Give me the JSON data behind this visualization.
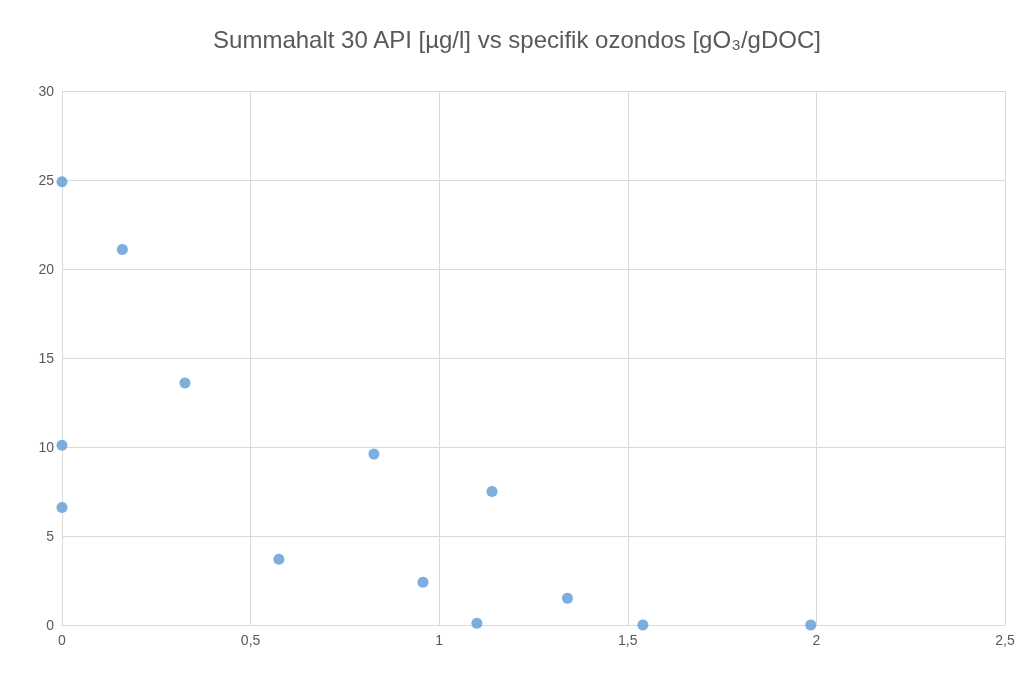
{
  "chart_data": {
    "type": "scatter",
    "title": "Summahalt 30 API [µg/l] vs specifik ozondos [gO₃/gDOC]",
    "x": [
      0,
      0.16,
      0.326,
      0,
      0,
      0.575,
      0.827,
      0.957,
      1.1,
      1.14,
      1.34,
      1.54,
      1.985
    ],
    "values": [
      24.9,
      21.1,
      13.6,
      10.1,
      6.6,
      3.7,
      9.6,
      2.4,
      0.1,
      7.5,
      1.5,
      0,
      0
    ],
    "color": "#5b9bd5",
    "marker": "circle",
    "xlim": [
      0,
      2.5
    ],
    "xticks": [
      0,
      {
        "value": 0.5,
        "label": "0,5"
      },
      1,
      {
        "value": 1.5,
        "label": "1,5"
      },
      2,
      {
        "value": 2.5,
        "label": "2,5"
      }
    ],
    "ylim": [
      0,
      30
    ],
    "yticks": [
      0,
      5,
      10,
      15,
      20,
      25,
      30
    ],
    "grid": true
  }
}
